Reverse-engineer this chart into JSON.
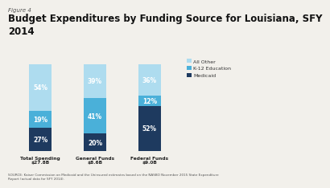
{
  "figure_label": "Figure 4",
  "title": "Budget Expenditures by Funding Source for Louisiana, SFY\n2014",
  "categories": [
    "Total Spending\n$27.8B",
    "General Funds\n$8.6B",
    "Federal Funds\n$9.0B"
  ],
  "series": {
    "Medicaid": [
      27,
      20,
      52
    ],
    "K-12 Education": [
      19,
      41,
      12
    ],
    "All Other": [
      54,
      39,
      36
    ]
  },
  "colors": {
    "Medicaid": "#1e3a5f",
    "K-12 Education": "#4ab0d9",
    "All Other": "#aedcef"
  },
  "legend_labels": [
    "All Other",
    "K-12 Education",
    "Medicaid"
  ],
  "source_text": "SOURCE: Kaiser Commission on Medicaid and the Uninsured estimates based on the NASBO November 2015 State Expenditure\nReport (actual data for SFY 2014).",
  "bar_width": 0.42,
  "ylim": [
    0,
    108
  ],
  "background_color": "#f2f0eb"
}
